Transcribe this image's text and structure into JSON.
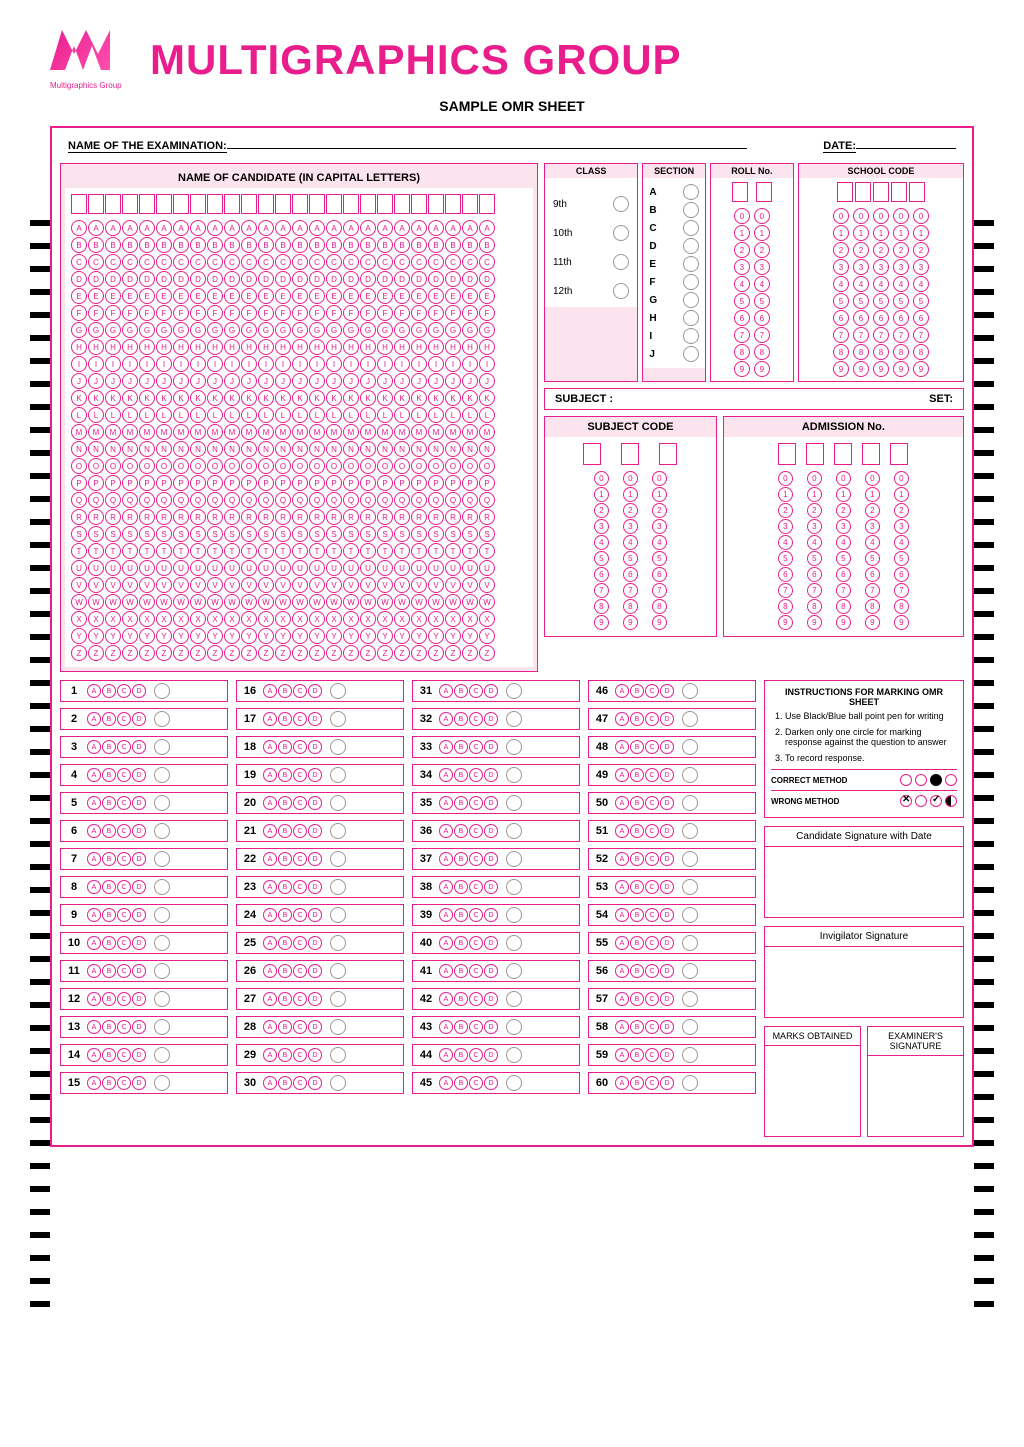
{
  "brand": "Multigraphics Group",
  "title": "MULTIGRAPHICS GROUP",
  "subtitle": "SAMPLE OMR SHEET",
  "labels": {
    "examName": "NAME OF THE EXAMINATION:",
    "date": "DATE:",
    "candidateName": "NAME OF CANDIDATE (IN CAPITAL LETTERS)",
    "class": "CLASS",
    "section": "SECTION",
    "rollNo": "ROLL No.",
    "schoolCode": "SCHOOL CODE",
    "subject": "SUBJECT :",
    "set": "SET:",
    "subjectCode": "SUBJECT CODE",
    "admissionNo": "ADMISSION No.",
    "instructionsTitle": "INSTRUCTIONS FOR MARKING OMR SHEET",
    "correctMethod": "CORRECT METHOD",
    "wrongMethod": "WRONG METHOD",
    "candidateSignature": "Candidate Signature with Date",
    "invigilatorSignature": "Invigilator Signature",
    "marksObtained": "MARKS OBTAINED",
    "examinerSignature": "EXAMINER'S SIGNATURE"
  },
  "alphabet": [
    "A",
    "B",
    "C",
    "D",
    "E",
    "F",
    "G",
    "H",
    "I",
    "J",
    "K",
    "L",
    "M",
    "N",
    "O",
    "P",
    "Q",
    "R",
    "S",
    "T",
    "U",
    "V",
    "W",
    "X",
    "Y",
    "Z"
  ],
  "digits": [
    "0",
    "1",
    "2",
    "3",
    "4",
    "5",
    "6",
    "7",
    "8",
    "9"
  ],
  "classes": [
    "9th",
    "10th",
    "11th",
    "12th"
  ],
  "sections": [
    "A",
    "B",
    "C",
    "D",
    "E",
    "F",
    "G",
    "H",
    "I",
    "J"
  ],
  "nameCols": 25,
  "rollCols": 2,
  "schoolCols": 5,
  "subjectCodeCols": 3,
  "admissionCols": 5,
  "questionCount": 60,
  "questionOptions": [
    "A",
    "B",
    "C",
    "D"
  ],
  "questionsPerCol": 15,
  "instructions": [
    "Use Black/Blue ball point pen for writing",
    "Darken only one circle for marking response against the question to answer",
    "To record response."
  ],
  "timingMarkCount": 48,
  "colors": {
    "primary": "#e91e8c",
    "lightBg": "#fce4ef"
  }
}
